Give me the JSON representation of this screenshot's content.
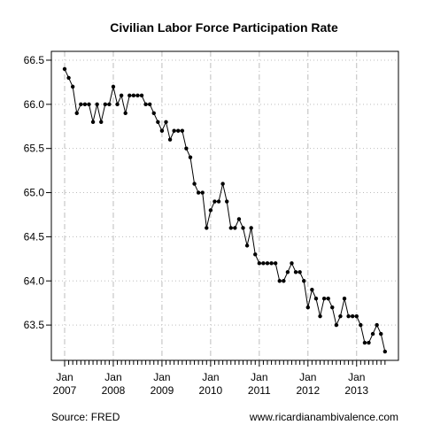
{
  "chart_data": {
    "type": "line",
    "title": "Civilian Labor Force Participation Rate",
    "xlabel": "",
    "ylabel": "",
    "ylim": [
      63.1,
      66.6
    ],
    "yticks": [
      63.5,
      64.0,
      64.5,
      65.0,
      65.5,
      66.0,
      66.5
    ],
    "ytick_labels": [
      "63.5",
      "64.0",
      "64.5",
      "65.0",
      "65.5",
      "66.0",
      "66.5"
    ],
    "x_start": "2007-01",
    "x_end": "2013-08",
    "xtick_labels": [
      {
        "month": "Jan",
        "year": "2007"
      },
      {
        "month": "Jan",
        "year": "2008"
      },
      {
        "month": "Jan",
        "year": "2009"
      },
      {
        "month": "Jan",
        "year": "2010"
      },
      {
        "month": "Jan",
        "year": "2011"
      },
      {
        "month": "Jan",
        "year": "2012"
      },
      {
        "month": "Jan",
        "year": "2013"
      }
    ],
    "grid": true,
    "series": [
      {
        "values": [
          66.4,
          66.3,
          66.2,
          65.9,
          66.0,
          66.0,
          66.0,
          65.8,
          66.0,
          65.8,
          66.0,
          66.0,
          66.2,
          66.0,
          66.1,
          65.9,
          66.1,
          66.1,
          66.1,
          66.1,
          66.0,
          66.0,
          65.9,
          65.8,
          65.7,
          65.8,
          65.6,
          65.7,
          65.7,
          65.7,
          65.5,
          65.4,
          65.1,
          65.0,
          65.0,
          64.6,
          64.8,
          64.9,
          64.9,
          65.1,
          64.9,
          64.6,
          64.6,
          64.7,
          64.6,
          64.4,
          64.6,
          64.3,
          64.2,
          64.2,
          64.2,
          64.2,
          64.2,
          64.0,
          64.0,
          64.1,
          64.2,
          64.1,
          64.1,
          64.0,
          63.7,
          63.9,
          63.8,
          63.6,
          63.8,
          63.8,
          63.7,
          63.5,
          63.6,
          63.8,
          63.6,
          63.6,
          63.6,
          63.5,
          63.3,
          63.3,
          63.4,
          63.5,
          63.4,
          63.2
        ]
      }
    ],
    "source": "Source: FRED",
    "credit": "www.ricardianambivalence.com"
  }
}
